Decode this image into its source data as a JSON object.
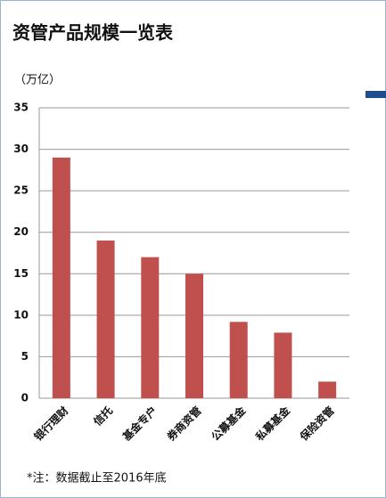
{
  "chart_data": {
    "type": "bar",
    "title": "资管产品规模一览表",
    "y_label": "（万亿）",
    "categories": [
      "银行理财",
      "信托",
      "基金专户",
      "券商资管",
      "公募基金",
      "私募基金",
      "保险资管"
    ],
    "values": [
      29,
      19,
      17,
      15,
      9.2,
      7.9,
      2
    ],
    "color": "#c0504d",
    "ylim": [
      0,
      35
    ],
    "yticks": [
      0,
      5,
      10,
      15,
      20,
      25,
      30,
      35
    ],
    "grid": true,
    "note": "*注：数据截止至2016年底"
  }
}
